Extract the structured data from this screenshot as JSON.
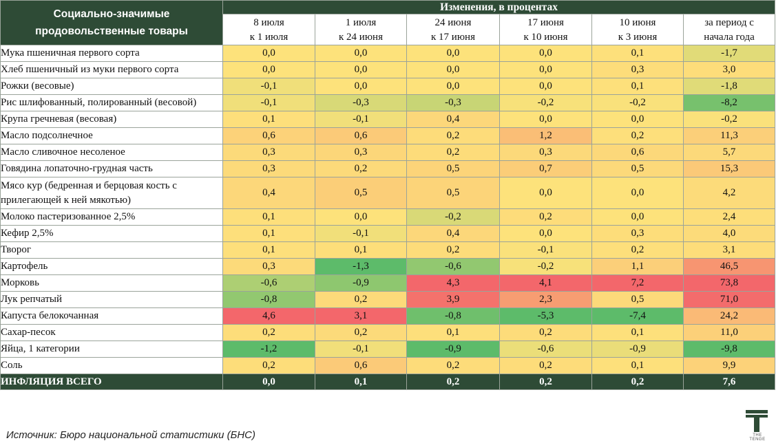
{
  "chart_data": {
    "type": "table",
    "header": {
      "corner": "Социально-значимые продовольственные товары",
      "group": "Изменения, в процентах",
      "columns": [
        [
          "8 июля",
          "к 1 июля"
        ],
        [
          "1 июля",
          "к 24 июня"
        ],
        [
          "24 июня",
          "к 17 июня"
        ],
        [
          "17 июня",
          "к 10 июня"
        ],
        [
          "10 июня",
          "к 3 июня"
        ],
        [
          "за период с",
          "начала года"
        ]
      ]
    },
    "rows": [
      {
        "name": "Мука пшеничная первого сорта",
        "values": [
          "0,0",
          "0,0",
          "0,0",
          "0,0",
          "0,1",
          "-1,7"
        ]
      },
      {
        "name": "Хлеб пшеничный из муки первого сорта",
        "values": [
          "0,0",
          "0,0",
          "0,0",
          "0,0",
          "0,3",
          "3,0"
        ]
      },
      {
        "name": "Рожки (весовые)",
        "values": [
          "-0,1",
          "0,0",
          "0,0",
          "0,0",
          "0,1",
          "-1,8"
        ]
      },
      {
        "name": "Рис шлифованный, полированный (весовой)",
        "values": [
          "-0,1",
          "-0,3",
          "-0,3",
          "-0,2",
          "-0,2",
          "-8,2"
        ]
      },
      {
        "name": "Крупа гречневая (весовая)",
        "values": [
          "0,1",
          "-0,1",
          "0,4",
          "0,0",
          "0,0",
          "-0,2"
        ]
      },
      {
        "name": "Масло подсолнечное",
        "values": [
          "0,6",
          "0,6",
          "0,2",
          "1,2",
          "0,2",
          "11,3"
        ]
      },
      {
        "name": "Масло сливочное несоленое",
        "values": [
          "0,3",
          "0,3",
          "0,2",
          "0,3",
          "0,6",
          "5,7"
        ]
      },
      {
        "name": "Говядина лопаточно-грудная часть",
        "values": [
          "0,3",
          "0,2",
          "0,5",
          "0,7",
          "0,5",
          "15,3"
        ]
      },
      {
        "name": "Мясо кур (бедренная и берцовая кость с прилегающей к ней мякотью)",
        "values": [
          "0,4",
          "0,5",
          "0,5",
          "0,0",
          "0,0",
          "4,2"
        ]
      },
      {
        "name": "Молоко пастеризованное 2,5%",
        "values": [
          "0,1",
          "0,0",
          "-0,2",
          "0,2",
          "0,0",
          "2,4"
        ]
      },
      {
        "name": "Кефир 2,5%",
        "values": [
          "0,1",
          "-0,1",
          "0,4",
          "0,0",
          "0,3",
          "4,0"
        ]
      },
      {
        "name": "Творог",
        "values": [
          "0,1",
          "0,1",
          "0,2",
          "-0,1",
          "0,2",
          "3,1"
        ]
      },
      {
        "name": "Картофель",
        "values": [
          "0,3",
          "-1,3",
          "-0,6",
          "-0,2",
          "1,1",
          "46,5"
        ]
      },
      {
        "name": "Морковь",
        "values": [
          "-0,6",
          "-0,9",
          "4,3",
          "4,1",
          "7,2",
          "73,8"
        ]
      },
      {
        "name": "Лук репчатый",
        "values": [
          "-0,8",
          "0,2",
          "3,9",
          "2,3",
          "0,5",
          "71,0"
        ]
      },
      {
        "name": "Капуста белокочанная",
        "values": [
          "4,6",
          "3,1",
          "-0,8",
          "-5,3",
          "-7,4",
          "24,2"
        ]
      },
      {
        "name": "Сахар-песок",
        "values": [
          "0,2",
          "0,2",
          "0,1",
          "0,2",
          "0,1",
          "11,0"
        ]
      },
      {
        "name": "Яйца, 1 категории",
        "values": [
          "-1,2",
          "-0,1",
          "-0,9",
          "-0,6",
          "-0,9",
          "-9,8"
        ]
      },
      {
        "name": "Соль",
        "values": [
          "0,2",
          "0,6",
          "0,2",
          "0,2",
          "0,1",
          "9,9"
        ]
      }
    ],
    "total": {
      "name": "ИНФЛЯЦИЯ ВСЕГО",
      "values": [
        "0,0",
        "0,1",
        "0,2",
        "0,2",
        "0,2",
        "7,6"
      ]
    }
  },
  "footer": {
    "source": "Источник: Бюро национальной статистики (БНС)"
  },
  "logo": {
    "text": "THE TENGE",
    "icon": "tenge-t-logo-icon",
    "color": "#2e4b36"
  },
  "colors": {
    "header_bg": "#2e4b36",
    "neutral": "#fde27b",
    "low": "#5dbb6a",
    "high": "#f3676b"
  }
}
